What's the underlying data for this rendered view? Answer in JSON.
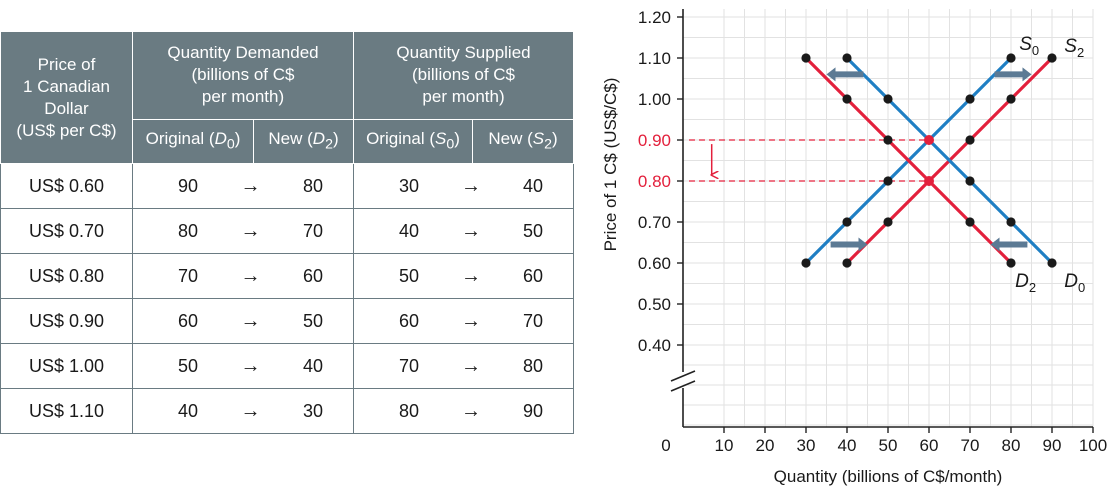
{
  "table": {
    "headers": {
      "price": [
        "Price of",
        "1 Canadian",
        "Dollar",
        "(US$ per C$)"
      ],
      "demanded": [
        "Quantity Demanded",
        "(billions of C$",
        "per month)"
      ],
      "supplied": [
        "Quantity Supplied",
        "(billions of C$",
        "per month)"
      ],
      "sub": {
        "d_original": "Original (",
        "d_original_var": "D",
        "d_original_sub": "0",
        "d_original_close": ")",
        "d_new": "New (",
        "d_new_var": "D",
        "d_new_sub": "2",
        "d_new_close": ")",
        "s_original": "Original (",
        "s_original_var": "S",
        "s_original_sub": "0",
        "s_original_close": ")",
        "s_new": "New (",
        "s_new_var": "S",
        "s_new_sub": "2",
        "s_new_close": ")"
      }
    },
    "arrow": "→",
    "rows": [
      {
        "price": "US$ 0.60",
        "d0": "90",
        "d2": "80",
        "s0": "30",
        "s2": "40"
      },
      {
        "price": "US$ 0.70",
        "d0": "80",
        "d2": "70",
        "s0": "40",
        "s2": "50"
      },
      {
        "price": "US$ 0.80",
        "d0": "70",
        "d2": "60",
        "s0": "50",
        "s2": "60"
      },
      {
        "price": "US$ 0.90",
        "d0": "60",
        "d2": "50",
        "s0": "60",
        "s2": "70"
      },
      {
        "price": "US$ 1.00",
        "d0": "50",
        "d2": "40",
        "s0": "70",
        "s2": "80"
      },
      {
        "price": "US$ 1.10",
        "d0": "40",
        "d2": "30",
        "s0": "80",
        "s2": "90"
      }
    ]
  },
  "chart_data": {
    "type": "line",
    "xlabel": "Quantity (billions of C$/month)",
    "ylabel": "Price of 1 C$ (US$/C$)",
    "x_ticks": [
      "0",
      "10",
      "20",
      "30",
      "40",
      "50",
      "60",
      "70",
      "80",
      "90",
      "100"
    ],
    "y_ticks": [
      "0.40",
      "0.50",
      "0.60",
      "0.70",
      "0.80",
      "0.90",
      "1.00",
      "1.10",
      "1.20"
    ],
    "red_ticks": [
      "0.80",
      "0.90"
    ],
    "xlim": [
      0,
      100
    ],
    "ylim": [
      0.4,
      1.2
    ],
    "grid": true,
    "axis_break": true,
    "colors": {
      "blue": "#1f7fc4",
      "red": "#e3203c",
      "grid": "#e2e2e2",
      "axis": "#222222",
      "arrow": "#5c7a94"
    },
    "series": [
      {
        "name": "S0",
        "label_main": "S",
        "label_sub": "0",
        "color": "#1f7fc4",
        "points": [
          [
            30,
            0.6
          ],
          [
            40,
            0.7
          ],
          [
            50,
            0.8
          ],
          [
            60,
            0.9
          ],
          [
            70,
            1.0
          ],
          [
            80,
            1.1
          ]
        ]
      },
      {
        "name": "S2",
        "label_main": "S",
        "label_sub": "2",
        "color": "#e3203c",
        "points": [
          [
            40,
            0.6
          ],
          [
            50,
            0.7
          ],
          [
            60,
            0.8
          ],
          [
            70,
            0.9
          ],
          [
            80,
            1.0
          ],
          [
            90,
            1.1
          ]
        ]
      },
      {
        "name": "D0",
        "label_main": "D",
        "label_sub": "0",
        "color": "#1f7fc4",
        "points": [
          [
            40,
            1.1
          ],
          [
            50,
            1.0
          ],
          [
            60,
            0.9
          ],
          [
            70,
            0.8
          ],
          [
            80,
            0.7
          ],
          [
            90,
            0.6
          ]
        ]
      },
      {
        "name": "D2",
        "label_main": "D",
        "label_sub": "2",
        "color": "#e3203c",
        "points": [
          [
            30,
            1.1
          ],
          [
            40,
            1.0
          ],
          [
            50,
            0.9
          ],
          [
            60,
            0.8
          ],
          [
            70,
            0.7
          ],
          [
            80,
            0.6
          ]
        ]
      }
    ],
    "equilibria": [
      [
        60,
        0.9
      ],
      [
        60,
        0.8
      ]
    ],
    "shift_arrows": [
      {
        "from": [
          44,
          1.06
        ],
        "to": [
          35,
          1.06
        ]
      },
      {
        "from": [
          76,
          1.06
        ],
        "to": [
          85,
          1.06
        ]
      },
      {
        "from": [
          36,
          0.645
        ],
        "to": [
          45,
          0.645
        ]
      },
      {
        "from": [
          84,
          0.645
        ],
        "to": [
          75,
          0.645
        ]
      }
    ],
    "price_drop": {
      "from": 0.89,
      "to": 0.81,
      "x": 7
    }
  }
}
